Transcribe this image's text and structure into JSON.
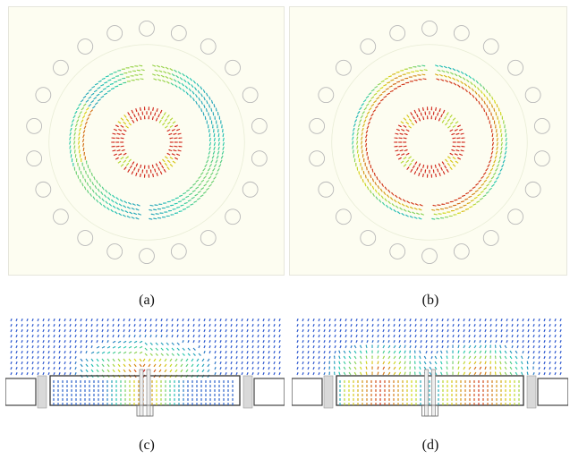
{
  "figure": {
    "panels": [
      {
        "id": "a",
        "caption": "(a)",
        "view": "top",
        "outer_ring_color": "#22c9b0",
        "inner_ring_color": "#d01818"
      },
      {
        "id": "b",
        "caption": "(b)",
        "view": "top",
        "outer_ring_color": "#cc1f10",
        "inner_ring_color": "#d01818"
      },
      {
        "id": "c",
        "caption": "(c)",
        "view": "side",
        "hot_zone": "center"
      },
      {
        "id": "d",
        "caption": "(d)",
        "view": "side",
        "hot_zone": "sides"
      }
    ],
    "colors": {
      "panel_bg": "#fdfdf1",
      "hole_stroke": "#b8b8b8",
      "cold": "#2a4fd0",
      "mid": "#22c9b0",
      "warm": "#d7d914",
      "hot": "#d01818"
    }
  }
}
